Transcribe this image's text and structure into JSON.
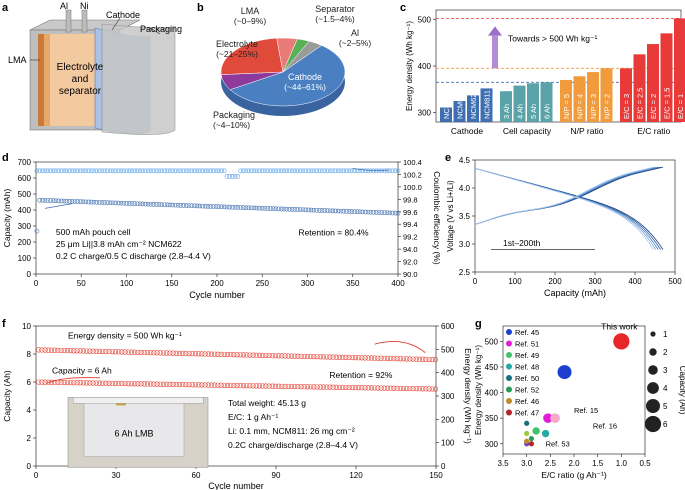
{
  "panels": {
    "a": {
      "label": "a",
      "terminals": [
        "Al",
        "Ni"
      ],
      "cathode": "Cathode",
      "packaging": "Packaging",
      "lma": "LMA",
      "electrolyte_line1": "Electrolyte",
      "electrolyte_line2": "and",
      "electrolyte_line3": "separator"
    },
    "b": {
      "label": "b",
      "chart_data": {
        "type": "pie",
        "slices": [
          {
            "name": "Cathode",
            "range": "(~44–61%)",
            "value": 52
          },
          {
            "name": "Packaging",
            "range": "(~4–10%)",
            "value": 7
          },
          {
            "name": "Electrolyte",
            "range": "(~21–25%)",
            "value": 23
          },
          {
            "name": "LMA",
            "range": "(~0–9%)",
            "value": 5
          },
          {
            "name": "Separator",
            "range": "(~1.5–4%)",
            "value": 3
          },
          {
            "name": "Al",
            "range": "(~2–5%)",
            "value": 3.5
          }
        ],
        "colors": [
          "#4a7fc1",
          "#8e3a9c",
          "#e04a3a",
          "#e87a78",
          "#59b057",
          "#9a9a9a"
        ]
      }
    },
    "c": {
      "label": "c",
      "chart_data": {
        "type": "bar",
        "ylabel": "Energy density (Wh kg⁻¹)",
        "ylim": [
          280,
          520
        ],
        "yticks": [
          300,
          400,
          500
        ],
        "annotation": "Towards > 500 Wh kg⁻¹",
        "reference_lines": [
          365,
          395,
          502
        ],
        "groups": [
          {
            "name": "Cathode",
            "color": "#3f6fb0",
            "categories": [
              "NCM111",
              "NCM523",
              "NCM622",
              "NCM811"
            ],
            "values": [
              311,
              325,
              337,
              352
            ]
          },
          {
            "name": "Cell capacity",
            "color": "#5aa3a8",
            "categories": [
              "3 Ah",
              "4 Ah",
              "5 Ah",
              "6 Ah"
            ],
            "values": [
              346,
              358,
              363,
              365
            ]
          },
          {
            "name": "N/P ratio",
            "color": "#f29b3c",
            "categories": [
              "N/P = 5",
              "N/P = 4",
              "N/P = 3",
              "N/P = 2"
            ],
            "values": [
              370,
              378,
              387,
              395
            ]
          },
          {
            "name": "E/C ratio",
            "color": "#e83a38",
            "categories": [
              "E/C = 3",
              "E/C = 2.5",
              "E/C = 2",
              "E/C = 1.5",
              "E/C = 1"
            ],
            "values": [
              395,
              425,
              447,
              470,
              502
            ]
          }
        ]
      }
    },
    "d": {
      "label": "d",
      "chart_data": {
        "type": "scatter",
        "xlabel": "Cycle number",
        "ylabel": "Capacity (mAh)",
        "y2label": "Coulombic efficiency (%)",
        "xlim": [
          0,
          400
        ],
        "xticks": [
          0,
          50,
          100,
          150,
          200,
          250,
          300,
          350,
          400
        ],
        "ylim": [
          0,
          700
        ],
        "yticks": [
          0,
          100,
          200,
          300,
          400,
          500,
          600,
          700
        ],
        "y2ticks": [
          "90.0",
          "92.0",
          "94.0",
          "99.2",
          "99.4",
          "99.6",
          "99.8",
          "100.0",
          "100.2",
          "100.4"
        ],
        "series": [
          {
            "name": "Capacity",
            "start": 462,
            "end": 380,
            "first_point": 268
          },
          {
            "name": "Coulombic efficiency",
            "level": 645,
            "dip_at": 210,
            "dip": 610
          }
        ],
        "texts": [
          "500 mAh pouch cell",
          "25 μm Li||3.8 mAh cm⁻² NCM622",
          "0.2 C charge/0.5 C discharge (2.8–4.4 V)",
          "Retention = 80.4%"
        ]
      }
    },
    "e": {
      "label": "e",
      "chart_data": {
        "type": "line",
        "xlabel": "Capacity (mAh)",
        "ylabel": "Voltage (V vs Li+/Li)",
        "xlim": [
          0,
          500
        ],
        "xticks": [
          0,
          100,
          200,
          300,
          400,
          500
        ],
        "ylim": [
          2.5,
          4.5
        ],
        "yticks": [
          2.5,
          3.0,
          3.5,
          4.0,
          4.5
        ],
        "annotation": "1st–200th"
      }
    },
    "f": {
      "label": "f",
      "chart_data": {
        "type": "scatter",
        "xlabel": "Cycle number",
        "ylabel": "Capacity (Ah)",
        "y2label": "Energy density (Wh kg⁻¹)",
        "xlim": [
          0,
          150
        ],
        "xticks": [
          0,
          30,
          60,
          90,
          120,
          150
        ],
        "ylim": [
          0,
          10
        ],
        "yticks": [
          0,
          2,
          4,
          6,
          8,
          10
        ],
        "y2ticks": [
          0,
          100,
          200,
          300,
          400,
          500,
          600
        ],
        "series": [
          {
            "name": "Energy density",
            "start": 8.3,
            "end": 7.6
          },
          {
            "name": "Capacity",
            "start": 6.0,
            "end": 5.5
          }
        ],
        "texts": [
          "Energy density = 500 Wh kg⁻¹",
          "Capacity = 6 Ah",
          "Retention = 92%",
          "Total weight: 45.13 g",
          "E/C: 1 g Ah⁻¹",
          "Li: 0.1 mm, NCM811: 26 mg cm⁻²",
          "0.2C charge/discharge (2.8–4.4 V)",
          "6 Ah LMB"
        ]
      }
    },
    "g": {
      "label": "g",
      "chart_data": {
        "type": "scatter",
        "xlabel": "E/C ratio (g Ah⁻¹)",
        "ylabel": "Energy density (Wh kg⁻¹)",
        "xlim": [
          3.5,
          0.5
        ],
        "xticks": [
          "3.5",
          "3.0",
          "2.5",
          "2.0",
          "1.5",
          "1.0",
          "0.5"
        ],
        "ylim": [
          280,
          530
        ],
        "yticks": [
          300,
          350,
          400,
          450,
          500
        ],
        "points": [
          {
            "name": "This work",
            "x": 1.0,
            "y": 500,
            "cap": 6,
            "color": "#e8262a"
          },
          {
            "name": "Ref. 45",
            "x": 2.2,
            "y": 440,
            "cap": 5,
            "color": "#1c3fcf"
          },
          {
            "name": "Ref. 51",
            "x": 2.55,
            "y": 350,
            "cap": 3,
            "color": "#e21dd6"
          },
          {
            "name": "Ref. 15",
            "x": 2.4,
            "y": 350,
            "cap": 3,
            "color": "#f5a8c8"
          },
          {
            "name": "Ref. 49",
            "x": 2.8,
            "y": 325,
            "cap": 2,
            "color": "#3fc26a"
          },
          {
            "name": "Ref. 48",
            "x": 2.6,
            "y": 320,
            "cap": 2,
            "color": "#27a8a0"
          },
          {
            "name": "Ref. 53",
            "x": 3.0,
            "y": 300,
            "cap": 1,
            "color": "#7a3fbf"
          },
          {
            "name": "Ref. 16",
            "x": 3.0,
            "y": 320,
            "cap": 1,
            "color": "#9acb3b"
          },
          {
            "name": "Ref. 50",
            "x": 3.0,
            "y": 340,
            "cap": 1,
            "color": "#1a6f7a"
          },
          {
            "name": "Ref. 52",
            "x": 2.9,
            "y": 310,
            "cap": 1,
            "color": "#2a9a5a"
          },
          {
            "name": "Ref. 46",
            "x": 3.0,
            "y": 305,
            "cap": 1,
            "color": "#c08a2a"
          },
          {
            "name": "Ref. 47",
            "x": 2.9,
            "y": 300,
            "cap": 1,
            "color": "#b0282a"
          }
        ],
        "legend": [
          "Ref. 45",
          "Ref. 51",
          "Ref. 49",
          "Ref. 48",
          "Ref. 50",
          "Ref. 52",
          "Ref. 46",
          "Ref. 47"
        ],
        "legend_colors": [
          "#1c3fcf",
          "#e21dd6",
          "#3fc26a",
          "#27a8a0",
          "#1a6f7a",
          "#2a9a5a",
          "#c08a2a",
          "#b0282a"
        ],
        "size_legend": {
          "title": "Capacity (Ah)",
          "items": [
            "1",
            "2",
            "3",
            "4",
            "5",
            "6"
          ]
        },
        "this_work": "This work",
        "ref15": "Ref. 15",
        "ref16": "Ref. 16",
        "ref53": "Ref. 53"
      }
    }
  }
}
